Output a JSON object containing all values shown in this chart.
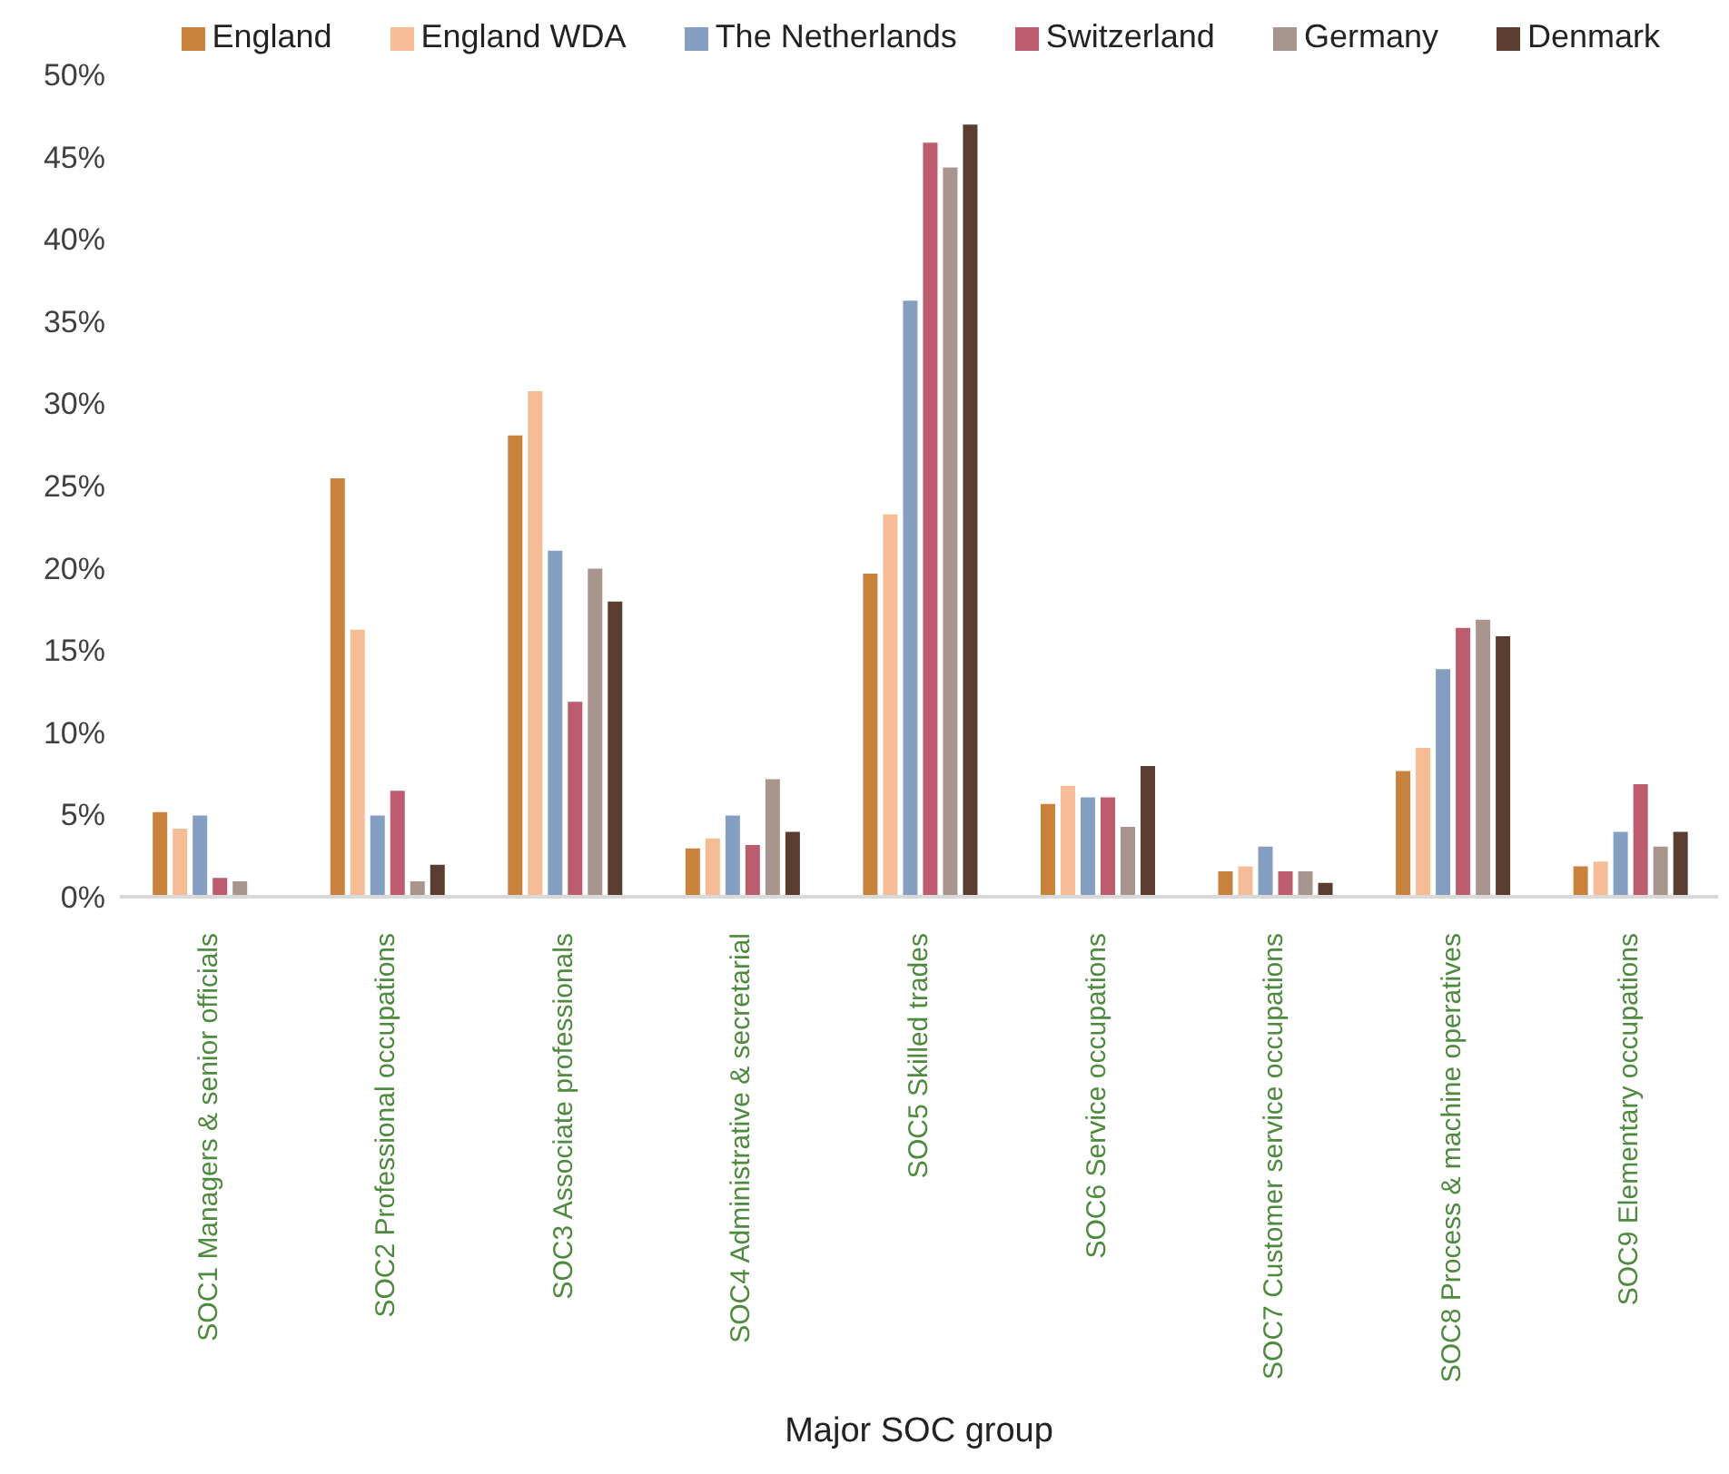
{
  "chart_data": {
    "type": "bar",
    "xlabel": "Major SOC group",
    "categories": [
      "SOC1 Managers & senior officials",
      "SOC2 Professional occupations",
      "SOC3 Associate professionals",
      "SOC4 Administrative & secretarial",
      "SOC5 Skilled trades",
      "SOC6 Service occupations",
      "SOC7 Customer service occupations",
      "SOC8 Process & machine operatives",
      "SOC9 Elementary occupations"
    ],
    "series": [
      {
        "name": "England",
        "color": "#c8823c",
        "values": [
          5.2,
          25.5,
          28.1,
          3.0,
          19.7,
          5.7,
          1.6,
          7.7,
          1.9
        ]
      },
      {
        "name": "England WDA",
        "color": "#f5bc96",
        "values": [
          4.2,
          16.3,
          30.8,
          3.6,
          23.3,
          6.8,
          1.9,
          9.1,
          2.2
        ]
      },
      {
        "name": "The Netherlands",
        "color": "#849fc2",
        "values": [
          5.0,
          5.0,
          21.1,
          5.0,
          36.3,
          6.1,
          3.1,
          13.9,
          4.0
        ]
      },
      {
        "name": "Switzerland",
        "color": "#bc5c6e",
        "values": [
          1.2,
          6.5,
          11.9,
          3.2,
          45.9,
          6.1,
          1.6,
          16.4,
          6.9
        ]
      },
      {
        "name": "Germany",
        "color": "#a8968e",
        "values": [
          1.0,
          1.0,
          20.0,
          7.2,
          44.4,
          4.3,
          1.6,
          16.9,
          3.1
        ]
      },
      {
        "name": "Denmark",
        "color": "#5a3c30",
        "values": [
          0,
          2.0,
          18.0,
          4.0,
          47.0,
          8.0,
          0.9,
          15.9,
          4.0
        ]
      }
    ],
    "ylim": [
      0,
      50
    ],
    "yticks": [
      {
        "value": 0,
        "label": "0%"
      },
      {
        "value": 5,
        "label": "5%"
      },
      {
        "value": 10,
        "label": "10%"
      },
      {
        "value": 15,
        "label": "15%"
      },
      {
        "value": 20,
        "label": "20%"
      },
      {
        "value": 25,
        "label": "25%"
      },
      {
        "value": 30,
        "label": "30%"
      },
      {
        "value": 35,
        "label": "35%"
      },
      {
        "value": 40,
        "label": "40%"
      },
      {
        "value": 45,
        "label": "45%"
      },
      {
        "value": 50,
        "label": "50%"
      }
    ],
    "grid": false,
    "legend": "top right"
  }
}
